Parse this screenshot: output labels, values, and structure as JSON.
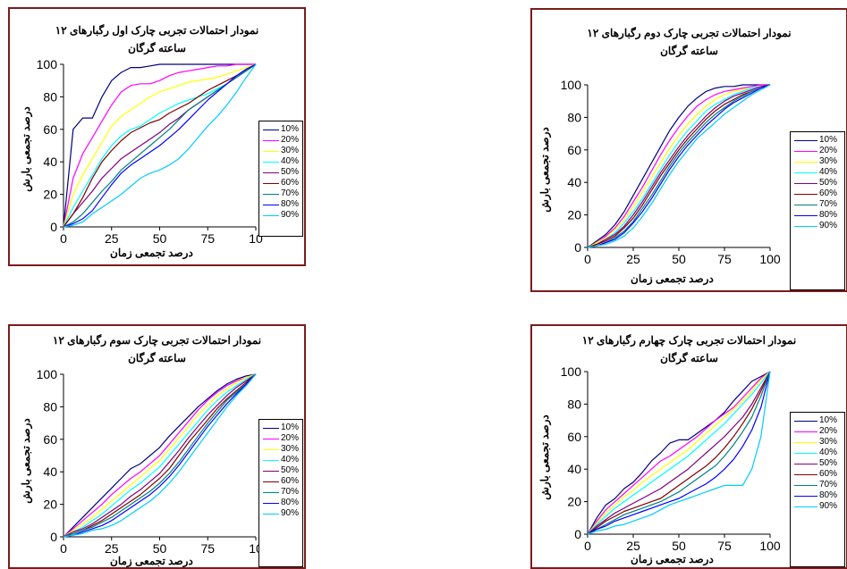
{
  "colors": {
    "frame": "#7a1c1c",
    "series": [
      "#000080",
      "#ff00ff",
      "#ffff00",
      "#00ffff",
      "#800080",
      "#800000",
      "#008080",
      "#0000ff",
      "#00ccff"
    ]
  },
  "legend_labels": [
    "10%",
    "20%",
    "30%",
    "40%",
    "50%",
    "60%",
    "70%",
    "80%",
    "90%"
  ],
  "chart_data": [
    {
      "type": "line",
      "title": "نمودار احتمالات تجربی چارک اول رگبارهای ۱۲",
      "subtitle": "ساعته گرگان",
      "xlabel": "درصد تجمعی زمان",
      "ylabel": "درصد تجمعی بارش",
      "x_ticks": [
        "0",
        "25",
        "50",
        "75",
        "10"
      ],
      "y_ticks": [
        "0",
        "20",
        "40",
        "60",
        "80",
        "100"
      ],
      "xlim": [
        0,
        100
      ],
      "ylim": [
        0,
        100
      ],
      "x": [
        0,
        5,
        10,
        15,
        20,
        25,
        30,
        35,
        40,
        45,
        50,
        55,
        60,
        65,
        70,
        75,
        80,
        85,
        90,
        95,
        100
      ],
      "series": [
        {
          "name": "10%",
          "values": [
            0,
            60,
            67,
            67,
            80,
            90,
            95,
            98,
            98,
            99,
            100,
            100,
            100,
            100,
            100,
            100,
            100,
            100,
            100,
            100,
            100
          ]
        },
        {
          "name": "20%",
          "values": [
            0,
            30,
            45,
            55,
            65,
            75,
            83,
            87,
            88,
            88,
            90,
            93,
            95,
            96,
            97,
            98,
            99,
            99,
            100,
            100,
            100
          ]
        },
        {
          "name": "30%",
          "values": [
            0,
            20,
            32,
            42,
            52,
            62,
            68,
            72,
            76,
            80,
            83,
            85,
            87,
            89,
            90,
            91,
            92,
            94,
            96,
            98,
            100
          ]
        },
        {
          "name": "40%",
          "values": [
            0,
            12,
            22,
            32,
            42,
            50,
            56,
            60,
            62,
            66,
            70,
            73,
            76,
            78,
            80,
            82,
            85,
            88,
            92,
            96,
            100
          ]
        },
        {
          "name": "50%",
          "values": [
            0,
            8,
            15,
            22,
            30,
            36,
            42,
            46,
            50,
            54,
            58,
            63,
            67,
            72,
            76,
            80,
            84,
            88,
            92,
            96,
            100
          ]
        },
        {
          "name": "60%",
          "values": [
            0,
            8,
            18,
            30,
            40,
            47,
            53,
            58,
            61,
            64,
            66,
            70,
            73,
            76,
            80,
            84,
            87,
            90,
            93,
            97,
            100
          ]
        },
        {
          "name": "70%",
          "values": [
            0,
            3,
            8,
            15,
            22,
            28,
            35,
            40,
            45,
            50,
            55,
            60,
            66,
            72,
            76,
            80,
            84,
            88,
            92,
            96,
            100
          ]
        },
        {
          "name": "80%",
          "values": [
            0,
            2,
            5,
            10,
            18,
            26,
            33,
            38,
            42,
            46,
            50,
            55,
            60,
            66,
            72,
            78,
            83,
            88,
            93,
            97,
            100
          ]
        },
        {
          "name": "90%",
          "values": [
            0,
            1,
            3,
            8,
            12,
            16,
            20,
            25,
            30,
            33,
            35,
            38,
            42,
            48,
            55,
            62,
            68,
            75,
            83,
            92,
            100
          ]
        }
      ]
    },
    {
      "type": "line",
      "title": "نمودار احتمالات تجربی چارک دوم رگبارهای ۱۲",
      "subtitle": "ساعته گرگان",
      "xlabel": "درصد تجمعی زمان",
      "ylabel": "درصد تجمعی بارش",
      "x_ticks": [
        "0",
        "25",
        "50",
        "75",
        "100"
      ],
      "y_ticks": [
        "0",
        "20",
        "40",
        "60",
        "80",
        "100"
      ],
      "xlim": [
        0,
        100
      ],
      "ylim": [
        0,
        100
      ],
      "x": [
        0,
        5,
        10,
        15,
        20,
        25,
        30,
        35,
        40,
        45,
        50,
        55,
        60,
        65,
        70,
        75,
        80,
        85,
        90,
        95,
        100
      ],
      "series": [
        {
          "name": "10%",
          "values": [
            0,
            4,
            8,
            14,
            22,
            32,
            42,
            52,
            62,
            72,
            80,
            87,
            92,
            96,
            98,
            99,
            99,
            100,
            100,
            100,
            100
          ]
        },
        {
          "name": "20%",
          "values": [
            0,
            3,
            7,
            12,
            19,
            28,
            37,
            47,
            57,
            66,
            74,
            81,
            87,
            91,
            94,
            96,
            97,
            98,
            99,
            100,
            100
          ]
        },
        {
          "name": "30%",
          "values": [
            0,
            3,
            6,
            11,
            17,
            25,
            34,
            43,
            52,
            61,
            69,
            76,
            82,
            87,
            91,
            94,
            96,
            97,
            98,
            99,
            100
          ]
        },
        {
          "name": "40%",
          "values": [
            0,
            2,
            5,
            9,
            15,
            22,
            30,
            39,
            48,
            57,
            65,
            72,
            78,
            84,
            88,
            91,
            94,
            96,
            98,
            99,
            100
          ]
        },
        {
          "name": "50%",
          "values": [
            0,
            2,
            5,
            8,
            13,
            20,
            28,
            37,
            46,
            54,
            62,
            69,
            75,
            81,
            86,
            90,
            93,
            95,
            97,
            99,
            100
          ]
        },
        {
          "name": "60%",
          "values": [
            0,
            2,
            4,
            7,
            12,
            18,
            26,
            35,
            44,
            52,
            60,
            67,
            73,
            79,
            84,
            88,
            91,
            94,
            96,
            98,
            100
          ]
        },
        {
          "name": "70%",
          "values": [
            0,
            1,
            3,
            6,
            10,
            16,
            24,
            32,
            41,
            50,
            58,
            65,
            71,
            77,
            82,
            86,
            90,
            93,
            96,
            98,
            100
          ]
        },
        {
          "name": "80%",
          "values": [
            0,
            1,
            3,
            5,
            9,
            15,
            22,
            30,
            39,
            48,
            56,
            63,
            69,
            75,
            80,
            85,
            89,
            92,
            95,
            98,
            100
          ]
        },
        {
          "name": "90%",
          "values": [
            0,
            1,
            2,
            4,
            7,
            12,
            19,
            27,
            36,
            45,
            53,
            60,
            67,
            72,
            77,
            82,
            86,
            90,
            94,
            97,
            100
          ]
        }
      ]
    },
    {
      "type": "line",
      "title": "نمودار احتمالات تجربی چارک سوم رگبارهای ۱۲",
      "subtitle": "ساعته گرگان",
      "xlabel": "درصد تجمعی زمان",
      "ylabel": "درصد تجمعی بارش",
      "x_ticks": [
        "0",
        "25",
        "50",
        "75",
        "10"
      ],
      "y_ticks": [
        "0",
        "20",
        "40",
        "60",
        "80",
        "100"
      ],
      "xlim": [
        0,
        100
      ],
      "ylim": [
        0,
        100
      ],
      "x": [
        0,
        5,
        10,
        15,
        20,
        25,
        30,
        35,
        40,
        45,
        50,
        55,
        60,
        65,
        70,
        75,
        80,
        85,
        90,
        95,
        100
      ],
      "series": [
        {
          "name": "10%",
          "values": [
            0,
            6,
            12,
            18,
            24,
            30,
            36,
            42,
            45,
            50,
            55,
            62,
            68,
            74,
            80,
            85,
            90,
            94,
            97,
            99,
            100
          ]
        },
        {
          "name": "20%",
          "values": [
            0,
            5,
            10,
            15,
            20,
            26,
            31,
            36,
            40,
            45,
            50,
            57,
            64,
            71,
            78,
            84,
            89,
            93,
            96,
            98,
            100
          ]
        },
        {
          "name": "30%",
          "values": [
            0,
            4,
            8,
            12,
            17,
            22,
            27,
            32,
            37,
            42,
            47,
            54,
            61,
            68,
            75,
            81,
            87,
            91,
            95,
            98,
            100
          ]
        },
        {
          "name": "40%",
          "values": [
            0,
            3,
            6,
            10,
            14,
            19,
            24,
            29,
            33,
            38,
            43,
            50,
            57,
            64,
            71,
            78,
            84,
            89,
            93,
            97,
            100
          ]
        },
        {
          "name": "50%",
          "values": [
            0,
            3,
            5,
            8,
            12,
            16,
            20,
            25,
            29,
            34,
            39,
            46,
            53,
            61,
            68,
            75,
            81,
            87,
            92,
            96,
            100
          ]
        },
        {
          "name": "60%",
          "values": [
            0,
            2,
            4,
            7,
            10,
            14,
            18,
            22,
            26,
            31,
            36,
            42,
            50,
            58,
            65,
            72,
            79,
            85,
            90,
            95,
            100
          ]
        },
        {
          "name": "70%",
          "values": [
            0,
            2,
            4,
            6,
            9,
            12,
            16,
            20,
            24,
            28,
            33,
            39,
            46,
            54,
            62,
            70,
            77,
            84,
            89,
            94,
            100
          ]
        },
        {
          "name": "80%",
          "values": [
            0,
            1,
            3,
            5,
            7,
            10,
            14,
            18,
            22,
            26,
            31,
            37,
            44,
            52,
            60,
            68,
            75,
            82,
            88,
            94,
            100
          ]
        },
        {
          "name": "90%",
          "values": [
            0,
            1,
            2,
            4,
            5,
            7,
            10,
            14,
            18,
            22,
            27,
            33,
            40,
            48,
            56,
            64,
            72,
            80,
            87,
            93,
            100
          ]
        }
      ]
    },
    {
      "type": "line",
      "title": "نمودار احتمالات تجربی چارک چهارم رگبارهای ۱۲",
      "subtitle": "ساعته گرگان",
      "xlabel": "درصد تجمعی زمان",
      "ylabel": "درصد تجمعی بارش",
      "x_ticks": [
        "0",
        "25",
        "50",
        "75",
        "100"
      ],
      "y_ticks": [
        "0",
        "20",
        "40",
        "60",
        "80",
        "100"
      ],
      "xlim": [
        0,
        100
      ],
      "ylim": [
        0,
        100
      ],
      "x": [
        0,
        5,
        10,
        15,
        20,
        25,
        30,
        35,
        40,
        45,
        50,
        55,
        60,
        65,
        70,
        75,
        80,
        85,
        90,
        95,
        100
      ],
      "series": [
        {
          "name": "10%",
          "values": [
            0,
            10,
            18,
            22,
            28,
            32,
            38,
            45,
            50,
            56,
            58,
            58,
            62,
            66,
            70,
            75,
            82,
            88,
            94,
            97,
            100
          ]
        },
        {
          "name": "20%",
          "values": [
            0,
            8,
            15,
            20,
            25,
            30,
            35,
            40,
            45,
            48,
            52,
            56,
            60,
            65,
            70,
            74,
            78,
            84,
            90,
            96,
            100
          ]
        },
        {
          "name": "30%",
          "values": [
            0,
            7,
            13,
            18,
            23,
            27,
            32,
            36,
            40,
            44,
            48,
            52,
            57,
            62,
            67,
            72,
            77,
            82,
            88,
            95,
            100
          ]
        },
        {
          "name": "40%",
          "values": [
            0,
            6,
            11,
            16,
            20,
            24,
            28,
            32,
            36,
            40,
            44,
            48,
            53,
            58,
            63,
            68,
            74,
            80,
            86,
            93,
            100
          ]
        },
        {
          "name": "50%",
          "values": [
            0,
            5,
            9,
            13,
            16,
            19,
            22,
            25,
            28,
            32,
            36,
            40,
            45,
            50,
            55,
            60,
            66,
            72,
            80,
            90,
            100
          ]
        },
        {
          "name": "60%",
          "values": [
            0,
            4,
            8,
            11,
            14,
            16,
            18,
            20,
            22,
            26,
            30,
            34,
            38,
            42,
            47,
            53,
            60,
            68,
            77,
            88,
            100
          ]
        },
        {
          "name": "70%",
          "values": [
            0,
            3,
            6,
            9,
            12,
            14,
            16,
            18,
            20,
            23,
            26,
            30,
            34,
            38,
            42,
            48,
            55,
            63,
            72,
            85,
            100
          ]
        },
        {
          "name": "80%",
          "values": [
            0,
            3,
            5,
            8,
            10,
            12,
            14,
            16,
            18,
            20,
            22,
            25,
            28,
            31,
            35,
            40,
            46,
            54,
            64,
            78,
            100
          ]
        },
        {
          "name": "90%",
          "values": [
            0,
            2,
            3,
            5,
            6,
            8,
            10,
            12,
            15,
            18,
            20,
            22,
            24,
            26,
            28,
            30,
            30,
            30,
            40,
            60,
            100
          ]
        }
      ]
    }
  ]
}
